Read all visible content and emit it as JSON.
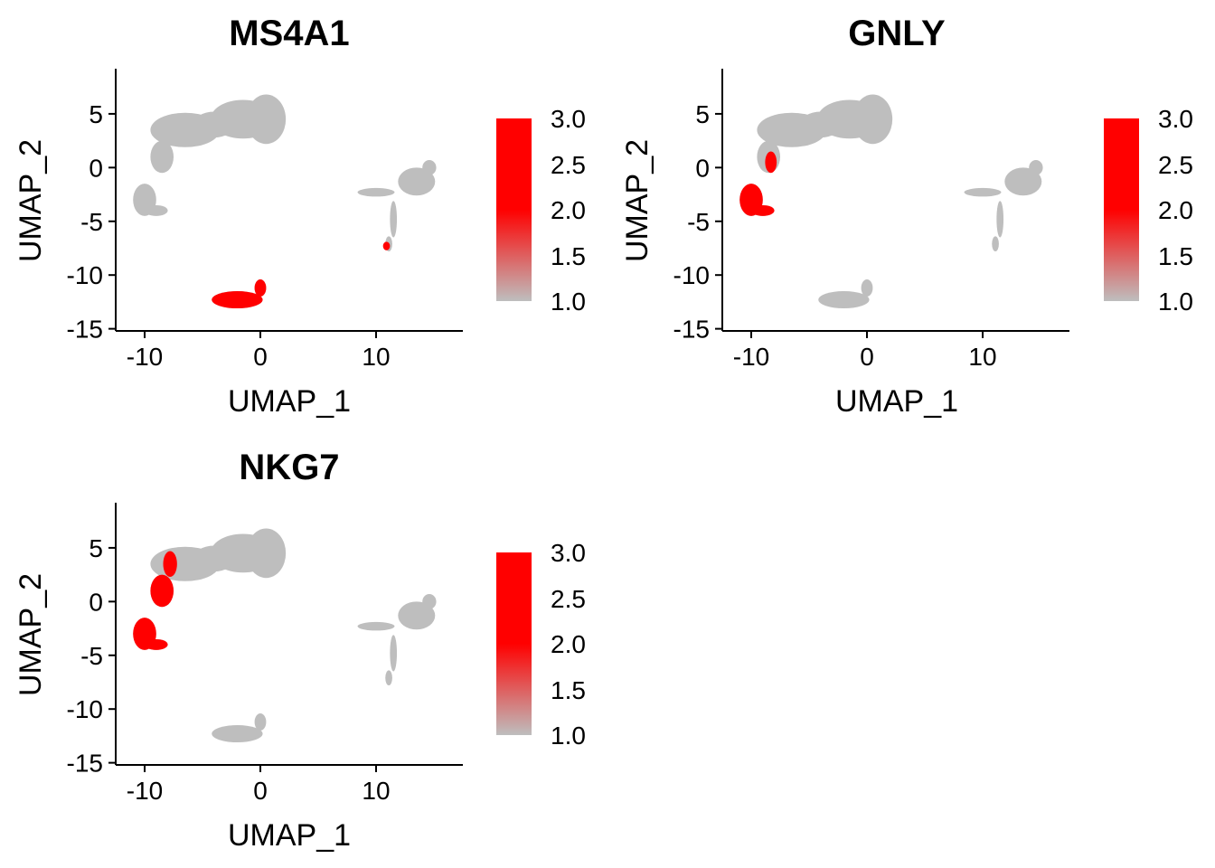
{
  "chart_data": [
    {
      "type": "scatter",
      "title": "MS4A1",
      "xlabel": "UMAP_1",
      "ylabel": "UMAP_2",
      "xlim": [
        -12.5,
        17.5
      ],
      "ylim": [
        -15.2,
        9.2
      ],
      "xticks": [
        -10,
        0,
        10
      ],
      "yticks": [
        5,
        0,
        -5,
        -10,
        -15
      ],
      "grid": false,
      "color_scale": {
        "low": "#BEBEBE",
        "high": "#FF0000",
        "min": 1.0,
        "max": 3.0,
        "ticks": [
          "3.0",
          "2.5",
          "2.0",
          "1.5",
          "1.0"
        ]
      },
      "red_regions": [
        {
          "cx": -2.0,
          "cy": -12.3,
          "rx": 2.2,
          "ry": 0.8
        },
        {
          "cx": 0.0,
          "cy": -11.2,
          "rx": 0.5,
          "ry": 0.8
        },
        {
          "cx": 10.9,
          "cy": -7.3,
          "rx": 0.3,
          "ry": 0.4
        }
      ]
    },
    {
      "type": "scatter",
      "title": "GNLY",
      "xlabel": "UMAP_1",
      "ylabel": "UMAP_2",
      "xlim": [
        -12.5,
        17.5
      ],
      "ylim": [
        -15.2,
        9.2
      ],
      "xticks": [
        -10,
        0,
        10
      ],
      "yticks": [
        5,
        0,
        -5,
        -10,
        -15
      ],
      "grid": false,
      "color_scale": {
        "low": "#BEBEBE",
        "high": "#FF0000",
        "min": 1.0,
        "max": 3.0,
        "ticks": [
          "3.0",
          "2.5",
          "2.0",
          "1.5",
          "1.0"
        ]
      },
      "red_regions": [
        {
          "cx": -10.0,
          "cy": -3.0,
          "rx": 1.0,
          "ry": 1.5
        },
        {
          "cx": -9.0,
          "cy": -4.0,
          "rx": 1.0,
          "ry": 0.5
        },
        {
          "cx": -8.3,
          "cy": 0.5,
          "rx": 0.5,
          "ry": 1.0
        }
      ]
    },
    {
      "type": "scatter",
      "title": "NKG7",
      "xlabel": "UMAP_1",
      "ylabel": "UMAP_2",
      "xlim": [
        -12.5,
        17.5
      ],
      "ylim": [
        -15.2,
        9.2
      ],
      "xticks": [
        -10,
        0,
        10
      ],
      "yticks": [
        5,
        0,
        -5,
        -10,
        -15
      ],
      "grid": false,
      "color_scale": {
        "low": "#BEBEBE",
        "high": "#FF0000",
        "min": 1.0,
        "max": 3.0,
        "ticks": [
          "3.0",
          "2.5",
          "2.0",
          "1.5",
          "1.0"
        ]
      },
      "red_regions": [
        {
          "cx": -10.0,
          "cy": -3.0,
          "rx": 1.0,
          "ry": 1.5
        },
        {
          "cx": -9.0,
          "cy": -4.0,
          "rx": 1.0,
          "ry": 0.5
        },
        {
          "cx": -8.5,
          "cy": 1.0,
          "rx": 1.0,
          "ry": 1.5
        },
        {
          "cx": -7.8,
          "cy": 3.5,
          "rx": 0.6,
          "ry": 1.2
        }
      ]
    }
  ],
  "clusters": [
    {
      "id": "upper-arm",
      "cx": -6.5,
      "cy": 3.5,
      "rx": 3.0,
      "ry": 1.6
    },
    {
      "id": "upper-blob",
      "cx": -1.5,
      "cy": 4.5,
      "rx": 2.8,
      "ry": 1.8
    },
    {
      "id": "upper-blob-2",
      "cx": 0.5,
      "cy": 4.5,
      "rx": 1.7,
      "ry": 2.3
    },
    {
      "id": "upper-bridge",
      "cx": -4.0,
      "cy": 4.0,
      "rx": 1.8,
      "ry": 1.2
    },
    {
      "id": "diagonal",
      "cx": -8.5,
      "cy": 1.0,
      "rx": 1.0,
      "ry": 1.5
    },
    {
      "id": "diagonal-2",
      "cx": -7.8,
      "cy": 3.5,
      "rx": 0.6,
      "ry": 1.2
    },
    {
      "id": "left-low",
      "cx": -10.0,
      "cy": -3.0,
      "rx": 1.0,
      "ry": 1.5
    },
    {
      "id": "left-low-2",
      "cx": -9.0,
      "cy": -4.0,
      "rx": 1.0,
      "ry": 0.5
    },
    {
      "id": "right-cluster",
      "cx": 13.5,
      "cy": -1.3,
      "rx": 1.6,
      "ry": 1.3
    },
    {
      "id": "right-head",
      "cx": 14.6,
      "cy": 0.0,
      "rx": 0.6,
      "ry": 0.7
    },
    {
      "id": "right-arm",
      "cx": 10.0,
      "cy": -2.3,
      "rx": 1.6,
      "ry": 0.4
    },
    {
      "id": "right-tail",
      "cx": 11.5,
      "cy": -4.8,
      "rx": 0.3,
      "ry": 1.7
    },
    {
      "id": "right-tail-2",
      "cx": 11.1,
      "cy": -7.1,
      "rx": 0.3,
      "ry": 0.7
    },
    {
      "id": "bottom",
      "cx": -2.0,
      "cy": -12.3,
      "rx": 2.2,
      "ry": 0.8
    },
    {
      "id": "bottom-2",
      "cx": 0.0,
      "cy": -11.2,
      "rx": 0.5,
      "ry": 0.8
    }
  ]
}
